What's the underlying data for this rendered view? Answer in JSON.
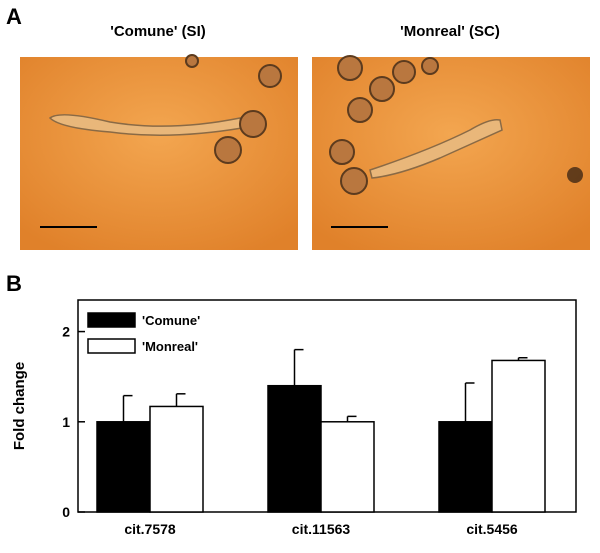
{
  "panel_a": {
    "label": "A",
    "titles": [
      "'Comune' (SI)",
      "'Monreal' (SC)"
    ]
  },
  "chart_data": {
    "type": "bar",
    "panel_label": "B",
    "y_label": "Fold change",
    "categories": [
      "cit.7578",
      "cit.11563",
      "cit.5456"
    ],
    "series": [
      {
        "name": "'Comune'",
        "color": "#000000",
        "values": [
          1.0,
          1.4,
          1.0
        ],
        "errors": [
          0.29,
          0.4,
          0.43
        ]
      },
      {
        "name": "'Monreal'",
        "color": "#ffffff",
        "values": [
          1.17,
          1.0,
          1.68
        ],
        "errors": [
          0.14,
          0.06,
          0.03
        ]
      }
    ],
    "ylim": [
      0,
      2.35
    ],
    "yticks": [
      0,
      1,
      2
    ],
    "legend": "upper left"
  }
}
